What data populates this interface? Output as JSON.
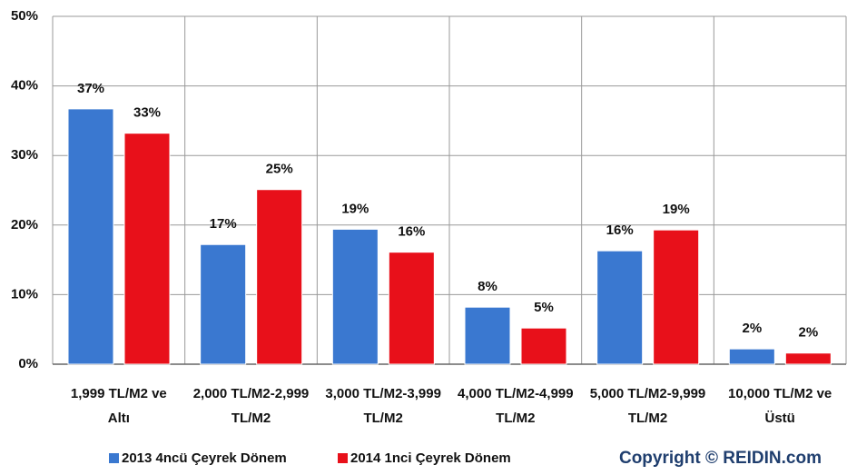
{
  "chart_data": {
    "type": "bar",
    "categories": [
      "1,999 TL/M2 ve Altı",
      "2,000 TL/M2-2,999 TL/M2",
      "3,000 TL/M2-3,999 TL/M2",
      "4,000 TL/M2-4,999 TL/M2",
      "5,000 TL/M2-9,999 TL/M2",
      "10,000 TL/M2 ve Üstü"
    ],
    "series": [
      {
        "name": "2013 4ncü Çeyrek Dönem",
        "color": "#3a78d0",
        "values": [
          36.7,
          17.2,
          19.4,
          8.2,
          16.3,
          2.2
        ],
        "value_labels": [
          "37%",
          "17%",
          "19%",
          "8%",
          "16%",
          "2%"
        ]
      },
      {
        "name": "2014 1nci Çeyrek Dönem",
        "color": "#e8101a",
        "values": [
          33.2,
          25.1,
          16.1,
          5.2,
          19.3,
          1.6
        ],
        "value_labels": [
          "33%",
          "25%",
          "16%",
          "5%",
          "19%",
          "2%"
        ]
      }
    ],
    "ylim": [
      0,
      50
    ],
    "yticks": [
      {
        "value": 0,
        "label": "0%"
      },
      {
        "value": 10,
        "label": "10%"
      },
      {
        "value": 20,
        "label": "20%"
      },
      {
        "value": 30,
        "label": "30%"
      },
      {
        "value": 40,
        "label": "40%"
      },
      {
        "value": 50,
        "label": "50%"
      }
    ],
    "grid": true,
    "legend": "bottom",
    "annotation": "Copyright © REIDIN.com"
  }
}
